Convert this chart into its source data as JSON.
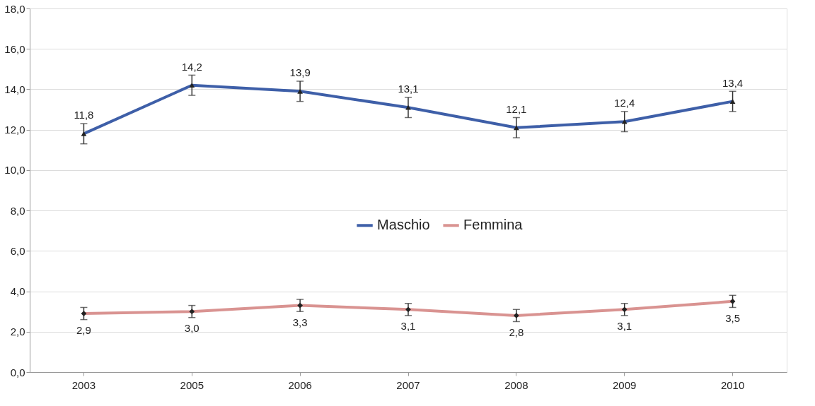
{
  "chart_data": {
    "type": "line",
    "categories": [
      "2003",
      "2005",
      "2006",
      "2007",
      "2008",
      "2009",
      "2010"
    ],
    "series": [
      {
        "name": "Maschio",
        "color": "#3e5fa8",
        "marker": "triangle",
        "values": [
          11.8,
          14.2,
          13.9,
          13.1,
          12.1,
          12.4,
          13.4
        ],
        "errors": [
          0.5,
          0.5,
          0.5,
          0.5,
          0.5,
          0.5,
          0.5
        ],
        "value_labels": [
          "11,8",
          "14,2",
          "13,9",
          "13,1",
          "12,1",
          "12,4",
          "13,4"
        ]
      },
      {
        "name": "Femmina",
        "color": "#d99391",
        "marker": "diamond",
        "values": [
          2.9,
          3.0,
          3.3,
          3.1,
          2.8,
          3.1,
          3.5
        ],
        "errors": [
          0.3,
          0.3,
          0.3,
          0.3,
          0.3,
          0.3,
          0.3
        ],
        "value_labels": [
          "2,9",
          "3,0",
          "3,3",
          "3,1",
          "2,8",
          "3,1",
          "3,5"
        ]
      }
    ],
    "ylim": [
      0,
      18
    ],
    "yticks": [
      {
        "value": 0,
        "label": "0,0"
      },
      {
        "value": 2,
        "label": "2,0"
      },
      {
        "value": 4,
        "label": "4,0"
      },
      {
        "value": 6,
        "label": "6,0"
      },
      {
        "value": 8,
        "label": "8,0"
      },
      {
        "value": 10,
        "label": "10,0"
      },
      {
        "value": 12,
        "label": "12,0"
      },
      {
        "value": 14,
        "label": "14,0"
      },
      {
        "value": 16,
        "label": "16,0"
      },
      {
        "value": 18,
        "label": "18,0"
      }
    ],
    "grid": "y",
    "legend": "center",
    "line_style": "solid"
  }
}
